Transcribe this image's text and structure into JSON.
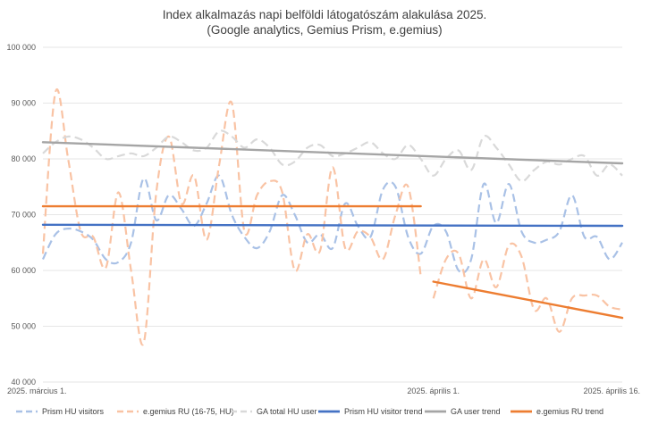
{
  "chart_data": {
    "type": "line",
    "title_lines": [
      "Index alkalmazás napi belföldi látogatószám alakulása 2025.",
      "(Google analytics, Gemius Prism, e.gemius)"
    ],
    "x_unit": "day index (0 = 2025. március 1.)",
    "xlim": [
      0,
      46
    ],
    "x_ticks": [
      {
        "x": 0,
        "label": "2025. március 1."
      },
      {
        "x": 31,
        "label": "2025. április 1."
      },
      {
        "x": 46,
        "label": "2025. április 16."
      }
    ],
    "ylim": [
      40000,
      100000
    ],
    "y_ticks": [
      {
        "value": 40000,
        "label": "40 000"
      },
      {
        "value": 50000,
        "label": "50 000"
      },
      {
        "value": 60000,
        "label": "60 000"
      },
      {
        "value": 70000,
        "label": "70 000"
      },
      {
        "value": 80000,
        "label": "80 000"
      },
      {
        "value": 90000,
        "label": "90 000"
      },
      {
        "value": 100000,
        "label": "100 000"
      }
    ],
    "grid": true,
    "legend_position": "bottom",
    "series": [
      {
        "name": "Prism HU visitors",
        "color": "#a9c1e6",
        "dashed": true,
        "width": 2.2,
        "x": [
          0,
          1,
          2,
          3,
          4,
          5,
          6,
          7,
          8,
          9,
          10,
          11,
          12,
          13,
          14,
          15,
          16,
          17,
          18,
          19,
          20,
          21,
          22,
          23,
          24,
          25,
          26,
          27,
          28,
          29,
          30,
          31,
          32,
          33,
          34,
          35,
          36,
          37,
          38,
          39,
          40,
          41,
          42,
          43,
          44,
          45,
          46
        ],
        "values": [
          62000,
          66500,
          67500,
          67000,
          65500,
          62000,
          61500,
          65000,
          76500,
          69000,
          73500,
          71000,
          68000,
          72000,
          77000,
          70000,
          66000,
          64000,
          67000,
          73500,
          70000,
          65000,
          66500,
          64000,
          72000,
          68000,
          66000,
          74500,
          75000,
          66000,
          63000,
          68000,
          67000,
          60000,
          62000,
          75500,
          68500,
          75500,
          67000,
          65000,
          65500,
          67000,
          73500,
          66000,
          66000,
          62000,
          65000
        ]
      },
      {
        "name": "e.gemius RU (16-75, HU)",
        "color": "#f9c3a4",
        "dashed": true,
        "width": 2.2,
        "x": [
          0,
          1,
          2,
          3,
          4,
          5,
          6,
          7,
          8,
          9,
          10,
          11,
          12,
          13,
          14,
          15,
          16,
          17,
          18,
          19,
          20,
          21,
          22,
          23,
          24,
          25,
          26,
          27,
          28,
          29,
          30
        ],
        "values": [
          63000,
          92000,
          80000,
          67000,
          66000,
          60500,
          74000,
          60000,
          47000,
          74000,
          84000,
          72000,
          77000,
          65500,
          79000,
          90000,
          67000,
          73500,
          76000,
          74000,
          60000,
          66500,
          63500,
          78500,
          64000,
          67000,
          66000,
          62000,
          70000,
          75000,
          59000
        ]
      },
      {
        "name": "e.gemius RU (16-75, HU)",
        "color": "#f9c3a4",
        "dashed": true,
        "width": 2.2,
        "hide_in_legend": true,
        "x": [
          31,
          32,
          33,
          34,
          35,
          36,
          37,
          38,
          39,
          40,
          41,
          42,
          43,
          44,
          45,
          46
        ],
        "values": [
          55000,
          62000,
          63000,
          55000,
          62000,
          57000,
          64500,
          62500,
          53000,
          55000,
          49000,
          55000,
          55500,
          55500,
          53500,
          53000
        ]
      },
      {
        "name": "GA total HU user",
        "color": "#d9d9d9",
        "dashed": true,
        "width": 2.2,
        "x": [
          0,
          1,
          2,
          3,
          4,
          5,
          6,
          7,
          8,
          9,
          10,
          11,
          12,
          13,
          14,
          15,
          16,
          17,
          18,
          19,
          20,
          21,
          22,
          23,
          24,
          25,
          26,
          27,
          28,
          29,
          30,
          31,
          32,
          33,
          34,
          35,
          36,
          37,
          38,
          39,
          40,
          41,
          42,
          43,
          44,
          45,
          46
        ],
        "values": [
          81000,
          83000,
          84000,
          83500,
          82000,
          80000,
          80500,
          81000,
          80500,
          82000,
          84000,
          83000,
          81500,
          82000,
          85000,
          84000,
          82000,
          83500,
          82000,
          79000,
          79500,
          82000,
          82500,
          80500,
          81000,
          82000,
          83000,
          81000,
          80000,
          82500,
          80000,
          77000,
          80000,
          81500,
          78000,
          84000,
          82000,
          79000,
          76000,
          78000,
          79500,
          79000,
          80000,
          80500,
          77000,
          79000,
          77000
        ]
      },
      {
        "name": "Prism HU visitor trend",
        "color": "#4472c4",
        "dashed": false,
        "width": 2.4,
        "x": [
          0,
          46
        ],
        "values": [
          68200,
          68000
        ]
      },
      {
        "name": "GA user trend",
        "color": "#a5a5a5",
        "dashed": false,
        "width": 2.4,
        "x": [
          0,
          46
        ],
        "values": [
          83000,
          79200
        ]
      },
      {
        "name": "e.gemius RU trend",
        "color": "#ed7d31",
        "dashed": false,
        "width": 2.4,
        "x": [
          0,
          30
        ],
        "values": [
          71500,
          71500
        ]
      },
      {
        "name": "e.gemius RU trend",
        "color": "#ed7d31",
        "dashed": false,
        "width": 2.4,
        "hide_in_legend": true,
        "x": [
          31,
          46
        ],
        "values": [
          58000,
          51500
        ]
      }
    ]
  }
}
